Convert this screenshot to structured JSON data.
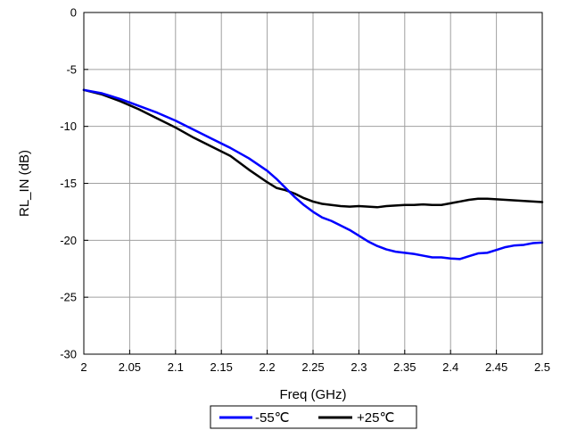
{
  "chart_data": {
    "type": "line",
    "xlabel": "Freq (GHz)",
    "ylabel": "RL_IN (dB)",
    "xlim": [
      2,
      2.5
    ],
    "ylim": [
      -30,
      0
    ],
    "xticks": [
      "2",
      "2.05",
      "2.1",
      "2.15",
      "2.2",
      "2.25",
      "2.3",
      "2.35",
      "2.4",
      "2.45",
      "2.5"
    ],
    "yticks": [
      "0",
      "-5",
      "-10",
      "-15",
      "-20",
      "-25",
      "-30"
    ],
    "grid": true,
    "legend_position": "bottom-center",
    "series": [
      {
        "name": "-55℃",
        "color": "#0000ff",
        "x": [
          2.0,
          2.02,
          2.04,
          2.06,
          2.08,
          2.1,
          2.12,
          2.14,
          2.16,
          2.18,
          2.2,
          2.21,
          2.22,
          2.23,
          2.24,
          2.25,
          2.26,
          2.27,
          2.28,
          2.29,
          2.3,
          2.31,
          2.32,
          2.33,
          2.34,
          2.35,
          2.36,
          2.37,
          2.38,
          2.39,
          2.4,
          2.41,
          2.42,
          2.43,
          2.44,
          2.45,
          2.46,
          2.47,
          2.48,
          2.49,
          2.5
        ],
        "y": [
          -6.8,
          -7.1,
          -7.6,
          -8.2,
          -8.8,
          -9.5,
          -10.3,
          -11.1,
          -11.9,
          -12.8,
          -13.9,
          -14.6,
          -15.4,
          -16.2,
          -16.9,
          -17.5,
          -18.0,
          -18.3,
          -18.7,
          -19.1,
          -19.6,
          -20.1,
          -20.5,
          -20.8,
          -21.0,
          -21.1,
          -21.2,
          -21.35,
          -21.5,
          -21.5,
          -21.6,
          -21.65,
          -21.4,
          -21.15,
          -21.1,
          -20.85,
          -20.6,
          -20.45,
          -20.4,
          -20.25,
          -20.2
        ]
      },
      {
        "name": "+25℃",
        "color": "#000000",
        "x": [
          2.0,
          2.02,
          2.04,
          2.06,
          2.08,
          2.1,
          2.12,
          2.14,
          2.16,
          2.18,
          2.2,
          2.21,
          2.22,
          2.23,
          2.24,
          2.25,
          2.26,
          2.27,
          2.28,
          2.29,
          2.3,
          2.31,
          2.32,
          2.33,
          2.34,
          2.35,
          2.36,
          2.37,
          2.38,
          2.39,
          2.4,
          2.41,
          2.42,
          2.43,
          2.44,
          2.45,
          2.46,
          2.47,
          2.48,
          2.49,
          2.5
        ],
        "y": [
          -6.8,
          -7.2,
          -7.8,
          -8.5,
          -9.3,
          -10.1,
          -11.0,
          -11.8,
          -12.6,
          -13.8,
          -14.9,
          -15.4,
          -15.6,
          -15.9,
          -16.3,
          -16.6,
          -16.8,
          -16.9,
          -17.0,
          -17.05,
          -17.0,
          -17.05,
          -17.1,
          -17.0,
          -16.95,
          -16.9,
          -16.9,
          -16.85,
          -16.9,
          -16.9,
          -16.75,
          -16.6,
          -16.45,
          -16.35,
          -16.35,
          -16.4,
          -16.45,
          -16.5,
          -16.55,
          -16.6,
          -16.65
        ]
      }
    ]
  }
}
